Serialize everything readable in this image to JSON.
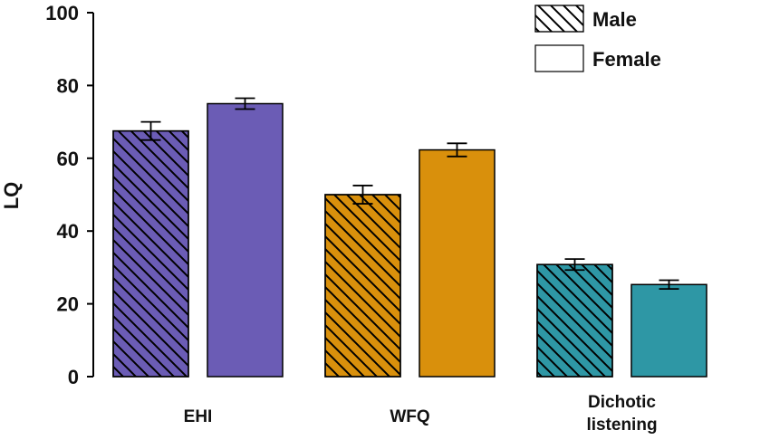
{
  "chart_data": {
    "type": "bar",
    "ylabel": "LQ",
    "xlabel": "",
    "ylim": [
      0,
      100
    ],
    "yticks": [
      0,
      20,
      40,
      60,
      80,
      100
    ],
    "categories": [
      {
        "lines": [
          "EHI"
        ],
        "color": "#6b5cb5"
      },
      {
        "lines": [
          "WFQ"
        ],
        "color": "#d9900c"
      },
      {
        "lines": [
          "Dichotic",
          "listening"
        ],
        "color": "#2e97a5"
      }
    ],
    "series": [
      {
        "name": "Male",
        "pattern": "hatched",
        "values": [
          67.5,
          50.0,
          30.8
        ],
        "errors": [
          2.5,
          2.5,
          1.5
        ]
      },
      {
        "name": "Female",
        "pattern": "solid",
        "values": [
          75.0,
          62.3,
          25.3
        ],
        "errors": [
          1.5,
          1.8,
          1.2
        ]
      }
    ],
    "legend": {
      "position": "top-right"
    },
    "grid": false
  }
}
